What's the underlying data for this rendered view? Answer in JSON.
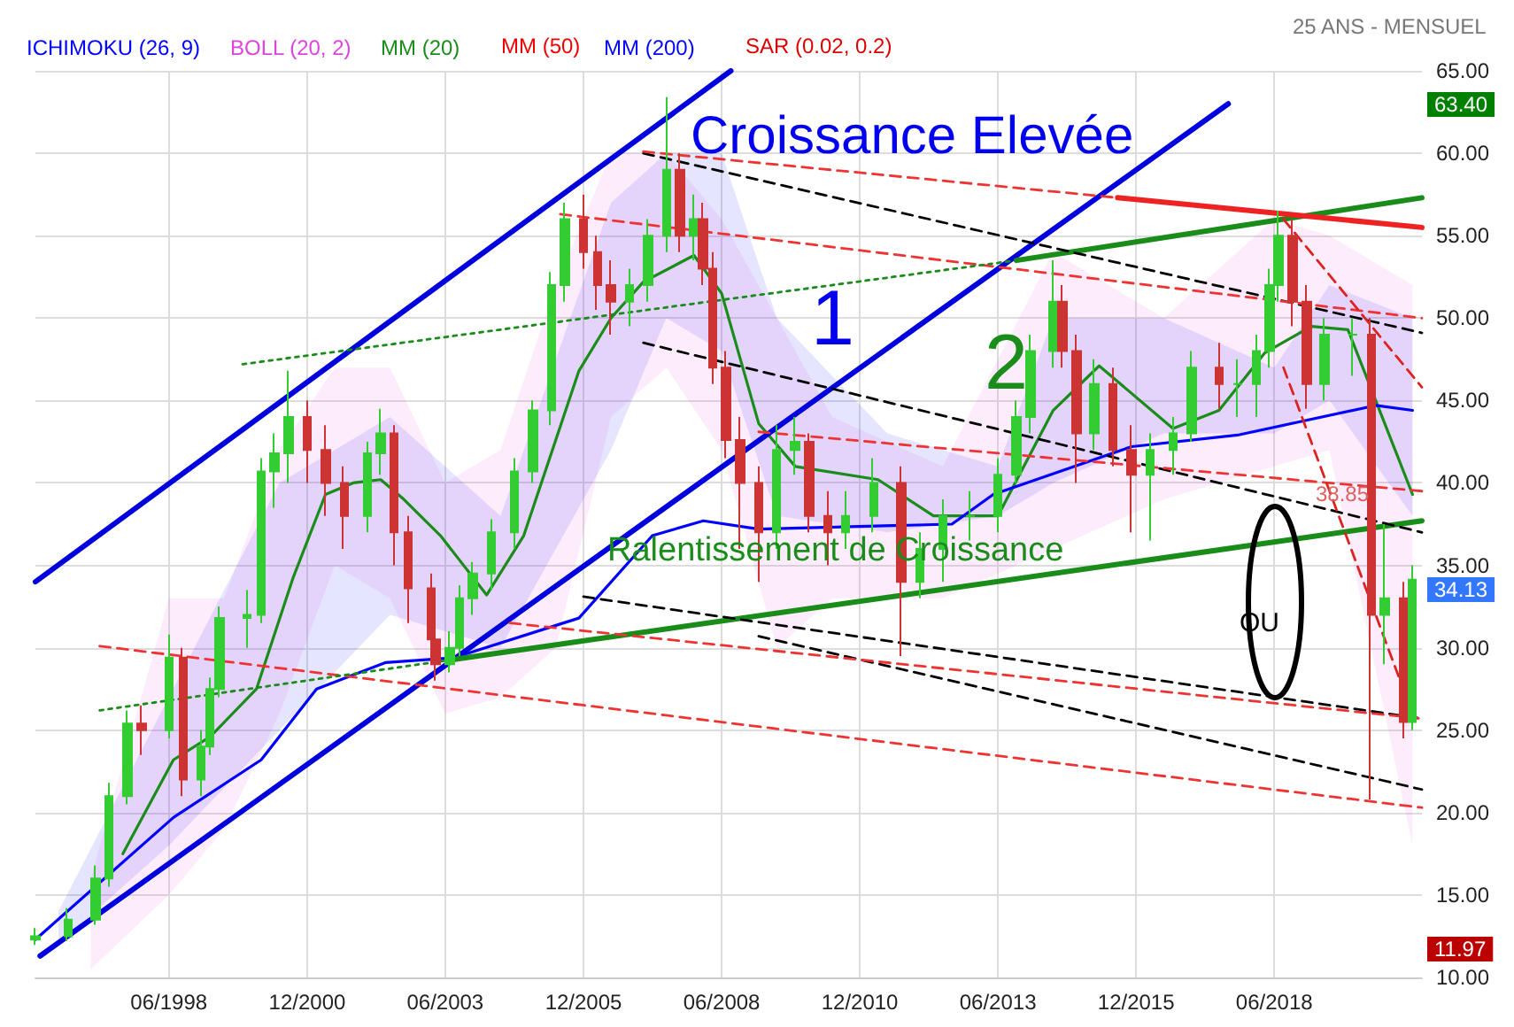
{
  "chart_data": {
    "type": "candlestick",
    "subtitle": "25 ANS - MENSUEL",
    "x": [
      "1996-01",
      "1996-08",
      "1997-02",
      "1997-05",
      "1997-09",
      "1997-12",
      "1998-06",
      "1998-09",
      "1999-01",
      "1999-03",
      "1999-05",
      "1999-11",
      "2000-02",
      "2000-05",
      "2000-08",
      "2000-12",
      "2001-04",
      "2001-08",
      "2002-01",
      "2002-04",
      "2002-07",
      "2002-10",
      "2003-03",
      "2003-04",
      "2003-07",
      "2003-09",
      "2003-12",
      "2004-04",
      "2004-09",
      "2005-01",
      "2005-05",
      "2005-08",
      "2005-12",
      "2006-03",
      "2006-06",
      "2006-10",
      "2007-02",
      "2007-06",
      "2007-09",
      "2007-12",
      "2008-02",
      "2008-04",
      "2008-07",
      "2008-10",
      "2009-02",
      "2009-06",
      "2009-10",
      "2010-01",
      "2010-05",
      "2010-09",
      "2011-03",
      "2011-09",
      "2012-01",
      "2012-06",
      "2012-12",
      "2013-06",
      "2013-10",
      "2014-01",
      "2014-06",
      "2014-08",
      "2014-11",
      "2015-03",
      "2015-07",
      "2015-11",
      "2016-03",
      "2016-08",
      "2016-12",
      "2017-06",
      "2017-10",
      "2018-02",
      "2018-05",
      "2018-07",
      "2018-10",
      "2019-01",
      "2019-05",
      "2019-11",
      "2020-03",
      "2020-06",
      "2020-10",
      "2020-12"
    ],
    "ohlc": [
      [
        12.3,
        13,
        11.97,
        12.5
      ],
      [
        12.5,
        14.2,
        12.2,
        13.5
      ],
      [
        13.5,
        16.8,
        13.2,
        16
      ],
      [
        16,
        21.8,
        15.5,
        21
      ],
      [
        21,
        26.2,
        20.5,
        25.4
      ],
      [
        25.4,
        26.5,
        23.5,
        25
      ],
      [
        25,
        30.8,
        24.5,
        29.4
      ],
      [
        29.4,
        30,
        21,
        22
      ],
      [
        22,
        25,
        21,
        24
      ],
      [
        24,
        28.2,
        23.5,
        27.5
      ],
      [
        27.5,
        32.5,
        27,
        31.8
      ],
      [
        31.8,
        33.5,
        30,
        32
      ],
      [
        32,
        41.5,
        31.5,
        40.7
      ],
      [
        40.7,
        43,
        38.5,
        41.8
      ],
      [
        41.8,
        46.8,
        40,
        44
      ],
      [
        44,
        45,
        40,
        42
      ],
      [
        42,
        43.5,
        38,
        40
      ],
      [
        40,
        41,
        36,
        38
      ],
      [
        38,
        42.5,
        37,
        41.8
      ],
      [
        41.8,
        44.5,
        40.5,
        43
      ],
      [
        43,
        43.5,
        35,
        37
      ],
      [
        37,
        38,
        31.5,
        33.6
      ],
      [
        33.6,
        34.5,
        29.5,
        30.5
      ],
      [
        30.5,
        31.5,
        28,
        29
      ],
      [
        29,
        31,
        28.5,
        30
      ],
      [
        30,
        33.8,
        29.5,
        33
      ],
      [
        33,
        35.2,
        32,
        34.5
      ],
      [
        34.5,
        37.8,
        33.5,
        37
      ],
      [
        37,
        41.5,
        36,
        40.7
      ],
      [
        40.7,
        45,
        40,
        44.4
      ],
      [
        44.4,
        52.8,
        43.5,
        52
      ],
      [
        52,
        57,
        51,
        56
      ],
      [
        56,
        57.5,
        53,
        54
      ],
      [
        54,
        55,
        50.5,
        52
      ],
      [
        52,
        53.5,
        49,
        51
      ],
      [
        51,
        53,
        49.5,
        52
      ],
      [
        52,
        56,
        51,
        55
      ],
      [
        55,
        63.4,
        54,
        59
      ],
      [
        59,
        60,
        54,
        55
      ],
      [
        55,
        57.5,
        53.5,
        56
      ],
      [
        56,
        57,
        52,
        53
      ],
      [
        53,
        54,
        46,
        47
      ],
      [
        47,
        48,
        41.5,
        42.6
      ],
      [
        42.6,
        44,
        36,
        40
      ],
      [
        40,
        41,
        34,
        37
      ],
      [
        37,
        43.5,
        36,
        42
      ],
      [
        42,
        44,
        40.5,
        42.5
      ],
      [
        42.5,
        43,
        37,
        38
      ],
      [
        38,
        39.5,
        35,
        37
      ],
      [
        37,
        39.5,
        36,
        38
      ],
      [
        38,
        41.5,
        37,
        40
      ],
      [
        40,
        41,
        29.5,
        34
      ],
      [
        34,
        37,
        33,
        36
      ],
      [
        36,
        39,
        34,
        38
      ],
      [
        38,
        39.5,
        36.5,
        38
      ],
      [
        38,
        41.5,
        37,
        40.5
      ],
      [
        40.5,
        45,
        40,
        44
      ],
      [
        44,
        49,
        43,
        48
      ],
      [
        48,
        53.5,
        47,
        51
      ],
      [
        51,
        52,
        47,
        48
      ],
      [
        48,
        49,
        40,
        43
      ],
      [
        43,
        47.5,
        42,
        46
      ],
      [
        46,
        47,
        41,
        42
      ],
      [
        42,
        43.5,
        37,
        40.5
      ],
      [
        40.5,
        43,
        36.5,
        42
      ],
      [
        42,
        44,
        40.5,
        43
      ],
      [
        43,
        48,
        42.5,
        47
      ],
      [
        47,
        48.5,
        44.5,
        46
      ],
      [
        46,
        47.5,
        44,
        46
      ],
      [
        46,
        49,
        44,
        48
      ],
      [
        48,
        53,
        47,
        52
      ],
      [
        52,
        56.5,
        51,
        55
      ],
      [
        55,
        56,
        49.5,
        51
      ],
      [
        51,
        52,
        44.5,
        46
      ],
      [
        46,
        50,
        45,
        49
      ],
      [
        49,
        50,
        46.5,
        49
      ],
      [
        49,
        50,
        20.8,
        32
      ],
      [
        32,
        37.5,
        29,
        33
      ],
      [
        33,
        34,
        24.5,
        25.5
      ],
      [
        25.5,
        35,
        25,
        34.13
      ]
    ],
    "colors": [
      "#33cc33",
      "#33cc33",
      "#33cc33",
      "#33cc33",
      "#33cc33",
      "#cc3333",
      "#33cc33",
      "#cc3333",
      "#33cc33",
      "#33cc33",
      "#33cc33",
      "#33cc33",
      "#33cc33",
      "#33cc33",
      "#33cc33",
      "#cc3333",
      "#cc3333",
      "#cc3333",
      "#33cc33",
      "#33cc33",
      "#cc3333",
      "#cc3333",
      "#cc3333",
      "#cc3333",
      "#33cc33",
      "#33cc33",
      "#33cc33",
      "#33cc33",
      "#33cc33",
      "#33cc33",
      "#33cc33",
      "#33cc33",
      "#cc3333",
      "#cc3333",
      "#cc3333",
      "#33cc33",
      "#33cc33",
      "#33cc33",
      "#cc3333",
      "#33cc33",
      "#cc3333",
      "#cc3333",
      "#cc3333",
      "#cc3333",
      "#cc3333",
      "#33cc33",
      "#33cc33",
      "#cc3333",
      "#cc3333",
      "#33cc33",
      "#33cc33",
      "#cc3333",
      "#33cc33",
      "#33cc33",
      "#33cc33",
      "#33cc33",
      "#33cc33",
      "#33cc33",
      "#33cc33",
      "#cc3333",
      "#cc3333",
      "#33cc33",
      "#cc3333",
      "#cc3333",
      "#33cc33",
      "#33cc33",
      "#33cc33",
      "#cc3333",
      "#33cc33",
      "#33cc33",
      "#33cc33",
      "#33cc33",
      "#cc3333",
      "#cc3333",
      "#33cc33",
      "#33cc33",
      "#cc3333",
      "#33cc33",
      "#cc3333",
      "#33cc33"
    ],
    "series": [
      {
        "name": "ICHIMOKU (26, 9)",
        "type": "line",
        "color": "#0000ff",
        "x": [
          "1996-06",
          "1998-06",
          "2000-06",
          "2002-06",
          "2004-06",
          "2006-06",
          "2007-06",
          "2008-06",
          "2009-06",
          "2011-06",
          "2013-06",
          "2014-06",
          "2016-06",
          "2018-06",
          "2019-06",
          "2020-12"
        ],
        "values": [
          null,
          null,
          null,
          null,
          null,
          null,
          null,
          null,
          null,
          null,
          null,
          null,
          null,
          null,
          null,
          null
        ],
        "lower": [
          12,
          18,
          25,
          32,
          30,
          42,
          50,
          48,
          38,
          37,
          38,
          40,
          43,
          43,
          45,
          38
        ],
        "upper": [
          14,
          27,
          40,
          44,
          38,
          57,
          60,
          60,
          50,
          43,
          41,
          50,
          50,
          47,
          52,
          50
        ]
      },
      {
        "name": "BOLL (20, 2)",
        "type": "line",
        "color": "#dd44dd",
        "x": [
          "1997-01",
          "1998-06",
          "1999-06",
          "2000-06",
          "2001-06",
          "2002-06",
          "2003-06",
          "2004-06",
          "2005-06",
          "2006-06",
          "2007-06",
          "2008-06",
          "2009-06",
          "2010-06",
          "2012-06",
          "2014-06",
          "2016-06",
          "2018-06",
          "2019-06",
          "2020-12"
        ],
        "values": [
          null,
          null,
          null,
          null,
          null,
          null,
          null,
          null,
          null,
          null,
          null,
          null,
          null,
          null,
          null,
          null,
          null,
          null,
          null,
          null
        ],
        "lower": [
          10.5,
          15,
          19,
          26,
          35,
          33,
          26,
          27,
          30,
          44,
          47,
          42,
          30,
          33,
          33,
          36,
          39,
          41,
          42,
          18
        ],
        "upper": [
          16,
          33,
          33,
          42,
          47,
          47,
          40,
          42,
          52,
          60,
          60,
          56,
          50,
          44,
          41,
          54,
          50,
          56,
          55,
          52
        ]
      },
      {
        "name": "MM (20)",
        "type": "line",
        "color": "#1a8c1a",
        "x": [
          "1997-08",
          "1998-07",
          "1999-03",
          "2000-01",
          "2000-09",
          "2001-04",
          "2001-10",
          "2002-04",
          "2002-09",
          "2003-05",
          "2004-03",
          "2004-11",
          "2005-11",
          "2006-06",
          "2007-01",
          "2007-12",
          "2008-06",
          "2009-02",
          "2009-10",
          "2011-04",
          "2012-04",
          "2013-06",
          "2014-06",
          "2015-04",
          "2016-08",
          "2017-06",
          "2018-04",
          "2019-02",
          "2019-10",
          "2020-12"
        ],
        "values": [
          17.5,
          23.2,
          24.6,
          27.5,
          34.3,
          39.3,
          40,
          40.2,
          39,
          36.8,
          33.2,
          36.8,
          46.8,
          50,
          52.2,
          53.8,
          51.5,
          43.6,
          41,
          40.2,
          38,
          38,
          44.4,
          47.1,
          43.3,
          44.4,
          47.9,
          49.5,
          49.3,
          39.3
        ]
      },
      {
        "name": "MM (200)",
        "type": "line",
        "color": "#0000ff",
        "x": [
          "1996-01",
          "1998-07",
          "2000-02",
          "2001-02",
          "2002-05",
          "2003-08",
          "2005-11",
          "2007-03",
          "2008-02",
          "2009-02",
          "2012-08",
          "2013-05",
          "2015-11",
          "2017-10",
          "2020-04",
          "2020-12"
        ],
        "values": [
          12.3,
          19.7,
          23.2,
          27.5,
          29.1,
          29.4,
          31.8,
          36.8,
          37.7,
          37.2,
          37.5,
          39.3,
          42.2,
          42.9,
          44.7,
          44.4
        ]
      },
      {
        "type": "line",
        "color": "#0000dd",
        "line_style": "solid",
        "x": [
          "1996-01",
          "2008-08"
        ],
        "values": [
          34.0,
          65
        ]
      },
      {
        "type": "line",
        "color": "#0000dd",
        "line_style": "solid",
        "x": [
          "1996-02",
          "2017-08"
        ],
        "values": [
          11.3,
          63
        ]
      },
      {
        "type": "line",
        "color": "#1a8c1a",
        "line_style": "solid",
        "x": [
          "2003-08",
          "2021-02"
        ],
        "values": [
          29.3,
          37.7
        ]
      },
      {
        "type": "line",
        "color": "#1a8c1a",
        "line_style": "solid",
        "x": [
          "2013-10",
          "2021-02"
        ],
        "values": [
          53.5,
          57.3
        ]
      },
      {
        "type": "line",
        "color": "#ee2222",
        "line_style": "solid",
        "x": [
          "2015-08",
          "2021-02"
        ],
        "values": [
          57.3,
          55.5
        ]
      },
      {
        "type": "line",
        "color": "#000000",
        "line_style": "dashed",
        "x": [
          "2007-01",
          "2021-02"
        ],
        "values": [
          60,
          49.1
        ]
      },
      {
        "type": "line",
        "color": "#000000",
        "line_style": "dashed",
        "x": [
          "2007-01",
          "2021-02"
        ],
        "values": [
          48.5,
          37
        ]
      },
      {
        "type": "line",
        "color": "#000000",
        "line_style": "dashed",
        "x": [
          "2005-12",
          "2021-02"
        ],
        "values": [
          33.1,
          25.7
        ]
      },
      {
        "type": "line",
        "color": "#000000",
        "line_style": "dashed",
        "x": [
          "2009-02",
          "2021-02"
        ],
        "values": [
          30.7,
          21.4
        ]
      },
      {
        "type": "line",
        "color": "#ee3333",
        "line_style": "dashed",
        "x": [
          "1997-03",
          "2021-02"
        ],
        "values": [
          30.1,
          20.3
        ]
      },
      {
        "type": "line",
        "color": "#ee3333",
        "line_style": "dashed",
        "x": [
          "2005-07",
          "2021-02"
        ],
        "values": [
          56.3,
          50
        ]
      },
      {
        "type": "line",
        "color": "#ee3333",
        "line_style": "dashed",
        "x": [
          "2007-01",
          "2015-08"
        ],
        "values": [
          60.1,
          57.3
        ]
      },
      {
        "type": "line",
        "color": "#ee3333",
        "line_style": "dashed",
        "x": [
          "2004-08",
          "2021-02"
        ],
        "values": [
          31.5,
          25.7
        ]
      },
      {
        "type": "line",
        "color": "#ee3333",
        "line_style": "dashed",
        "x": [
          "2009-02",
          "2021-02"
        ],
        "values": [
          43.1,
          39.5
        ]
      },
      {
        "type": "line",
        "color": "#dd2222",
        "line_style": "dashed",
        "x": [
          "2018-08",
          "2021-02"
        ],
        "values": [
          56,
          45.8
        ]
      },
      {
        "type": "line",
        "color": "#dd2222",
        "line_style": "dashed",
        "x": [
          "2018-08",
          "2020-12"
        ],
        "values": [
          47,
          26
        ]
      },
      {
        "type": "line",
        "color": "#1a8c1a",
        "line_style": "dotted",
        "x": [
          "1999-10",
          "2013-10"
        ],
        "values": [
          47.2,
          53.5
        ]
      },
      {
        "type": "line",
        "color": "#1a8c1a",
        "line_style": "dotted",
        "x": [
          "1997-03",
          "2003-08"
        ],
        "values": [
          26.2,
          29.3
        ]
      }
    ],
    "xlim": [
      "1996-01",
      "2021-02"
    ],
    "xticks": [
      {
        "value": "1998-06",
        "label": "06/1998"
      },
      {
        "value": "2000-12",
        "label": "12/2000"
      },
      {
        "value": "2003-06",
        "label": "06/2003"
      },
      {
        "value": "2005-12",
        "label": "12/2005"
      },
      {
        "value": "2008-06",
        "label": "06/2008"
      },
      {
        "value": "2010-12",
        "label": "12/2010"
      },
      {
        "value": "2013-06",
        "label": "06/2013"
      },
      {
        "value": "2015-12",
        "label": "12/2015"
      },
      {
        "value": "2018-06",
        "label": "06/2018"
      }
    ],
    "ylim": [
      10,
      65
    ],
    "yticks": [
      {
        "value": 10,
        "label": "10.00"
      },
      {
        "value": 15,
        "label": "15.00"
      },
      {
        "value": 20,
        "label": "20.00"
      },
      {
        "value": 25,
        "label": "25.00"
      },
      {
        "value": 30,
        "label": "30.00"
      },
      {
        "value": 35,
        "label": "35.00"
      },
      {
        "value": 40,
        "label": "40.00"
      },
      {
        "value": 45,
        "label": "45.00"
      },
      {
        "value": 50,
        "label": "50.00"
      },
      {
        "value": 55,
        "label": "55.00"
      },
      {
        "value": 60,
        "label": "60.00"
      },
      {
        "value": 65,
        "label": "65.00"
      }
    ],
    "annotations": [
      "Croissance Elevée",
      "1",
      "2",
      "Ralentissement de Croissance",
      "38.85",
      "OU",
      "63.40",
      "34.13",
      "11.97",
      "MM (50)",
      "SAR (0.02, 0.2)"
    ],
    "grid": true,
    "legend": "top left",
    "marker": "none"
  }
}
